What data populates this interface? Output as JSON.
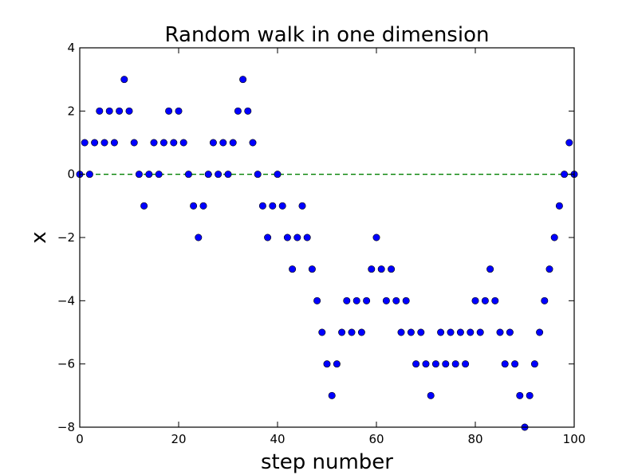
{
  "chart_data": {
    "type": "scatter",
    "title": "Random walk in one dimension",
    "xlabel": "step number",
    "ylabel": "x",
    "xlim": [
      0,
      100
    ],
    "ylim": [
      -8,
      4
    ],
    "xticks": [
      0,
      20,
      40,
      60,
      80,
      100
    ],
    "yticks": [
      4,
      2,
      0,
      -2,
      -4,
      -6,
      -8
    ],
    "xtick_labels": [
      "0",
      "20",
      "40",
      "60",
      "80",
      "100"
    ],
    "ytick_labels": [
      "4",
      "2",
      "0",
      "−2",
      "−4",
      "−6",
      "−8"
    ],
    "grid": false,
    "reference_line": {
      "y": 0,
      "style": "dashed",
      "color": "#008000"
    },
    "series": [
      {
        "marker": "circle",
        "color": "#0000ff",
        "x": [
          0,
          1,
          2,
          3,
          4,
          5,
          6,
          7,
          8,
          9,
          10,
          11,
          12,
          13,
          14,
          15,
          16,
          17,
          18,
          19,
          20,
          21,
          22,
          23,
          24,
          25,
          26,
          27,
          28,
          29,
          30,
          31,
          32,
          33,
          34,
          35,
          36,
          37,
          38,
          39,
          40,
          41,
          42,
          43,
          44,
          45,
          46,
          47,
          48,
          49,
          50,
          51,
          52,
          53,
          54,
          55,
          56,
          57,
          58,
          59,
          60,
          61,
          62,
          63,
          64,
          65,
          66,
          67,
          68,
          69,
          70,
          71,
          72,
          73,
          74,
          75,
          76,
          77,
          78,
          79,
          80,
          81,
          82,
          83,
          84,
          85,
          86,
          87,
          88,
          89,
          90,
          91,
          92,
          93,
          94,
          95,
          96,
          97,
          98,
          99,
          100
        ],
        "y": [
          0,
          1,
          0,
          1,
          2,
          1,
          2,
          1,
          2,
          3,
          2,
          1,
          0,
          -1,
          0,
          1,
          0,
          1,
          2,
          1,
          2,
          1,
          0,
          -1,
          -2,
          -1,
          0,
          1,
          0,
          1,
          0,
          1,
          2,
          3,
          2,
          1,
          0,
          -1,
          -2,
          -1,
          0,
          -1,
          -2,
          -3,
          -2,
          -1,
          -2,
          -3,
          -4,
          -5,
          -6,
          -7,
          -6,
          -5,
          -4,
          -5,
          -4,
          -5,
          -4,
          -3,
          -2,
          -3,
          -4,
          -3,
          -4,
          -5,
          -4,
          -5,
          -6,
          -5,
          -6,
          -7,
          -6,
          -5,
          -6,
          -5,
          -6,
          -5,
          -6,
          -5,
          -4,
          -5,
          -4,
          -3,
          -4,
          -5,
          -6,
          -5,
          -6,
          -7,
          -8,
          -7,
          -6,
          -5,
          -4,
          -3,
          -2,
          -1,
          0,
          1,
          0
        ]
      }
    ]
  }
}
